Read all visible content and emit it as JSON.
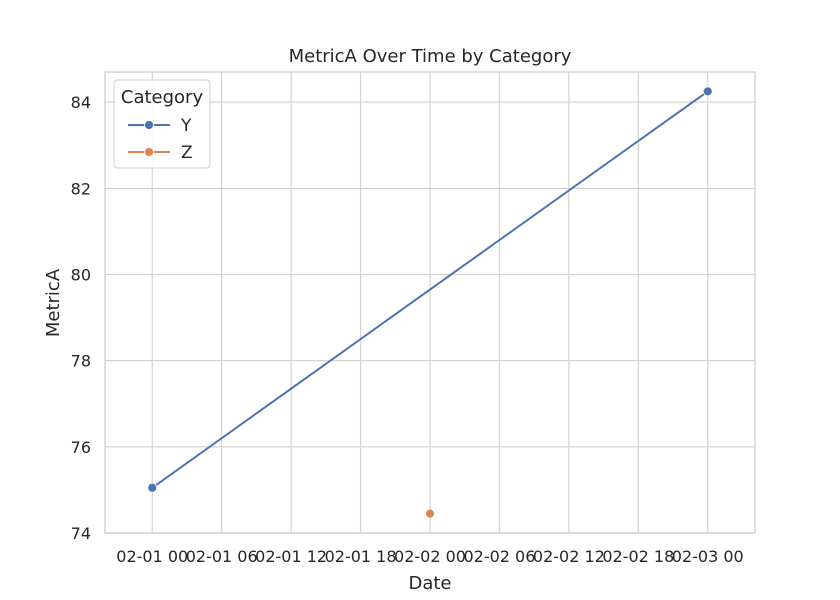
{
  "chart_data": {
    "type": "line",
    "title": "MetricA Over Time by Category",
    "xlabel": "Date",
    "ylabel": "MetricA",
    "x_ticks": [
      "02-01 00",
      "02-01 06",
      "02-01 12",
      "02-01 18",
      "02-02 00",
      "02-02 06",
      "02-02 12",
      "02-02 18",
      "02-03 00"
    ],
    "y_ticks": [
      "74",
      "76",
      "78",
      "80",
      "82",
      "84"
    ],
    "ylim": [
      74,
      84.7
    ],
    "xlim": [
      "2024-01-31 19:55",
      "2024-02-03 04:05"
    ],
    "grid": true,
    "legend": {
      "title": "Category",
      "placement": "top-left"
    },
    "series": [
      {
        "name": "Y",
        "color": "#4c72b0",
        "x": [
          "2024-02-01 00:00",
          "2024-02-03 00:00"
        ],
        "y": [
          75.05,
          84.25
        ]
      },
      {
        "name": "Z",
        "color": "#dd8452",
        "x": [
          "2024-02-02 00:00"
        ],
        "y": [
          74.45
        ]
      }
    ]
  }
}
